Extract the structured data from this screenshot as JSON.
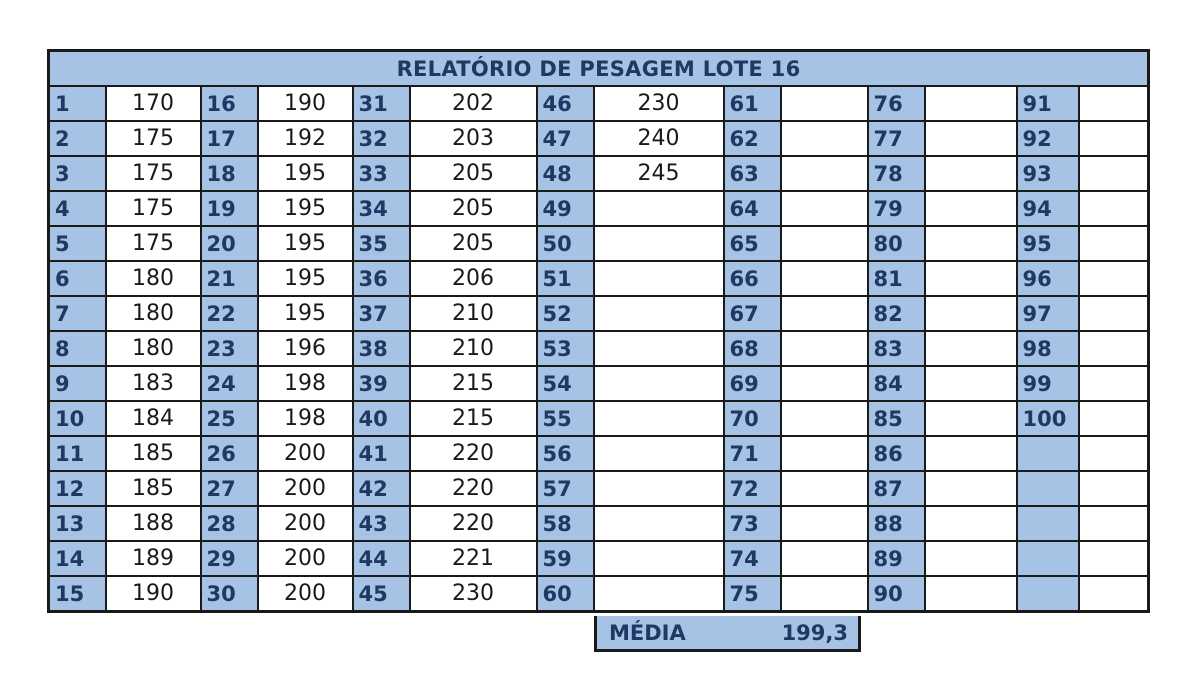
{
  "title": "RELATÓRIO DE PESAGEM LOTE 16",
  "columns": [
    {
      "nums": [
        "1",
        "2",
        "3",
        "4",
        "5",
        "6",
        "7",
        "8",
        "9",
        "10",
        "11",
        "12",
        "13",
        "14",
        "15"
      ],
      "vals": [
        "170",
        "175",
        "175",
        "175",
        "175",
        "180",
        "180",
        "180",
        "183",
        "184",
        "185",
        "185",
        "188",
        "189",
        "190"
      ]
    },
    {
      "nums": [
        "16",
        "17",
        "18",
        "19",
        "20",
        "21",
        "22",
        "23",
        "24",
        "25",
        "26",
        "27",
        "28",
        "29",
        "30"
      ],
      "vals": [
        "190",
        "192",
        "195",
        "195",
        "195",
        "195",
        "195",
        "196",
        "198",
        "198",
        "200",
        "200",
        "200",
        "200",
        "200"
      ]
    },
    {
      "nums": [
        "31",
        "32",
        "33",
        "34",
        "35",
        "36",
        "37",
        "38",
        "39",
        "40",
        "41",
        "42",
        "43",
        "44",
        "45"
      ],
      "vals": [
        "202",
        "203",
        "205",
        "205",
        "205",
        "206",
        "210",
        "210",
        "215",
        "215",
        "220",
        "220",
        "220",
        "221",
        "230"
      ]
    },
    {
      "nums": [
        "46",
        "47",
        "48",
        "49",
        "50",
        "51",
        "52",
        "53",
        "54",
        "55",
        "56",
        "57",
        "58",
        "59",
        "60"
      ],
      "vals": [
        "230",
        "240",
        "245",
        "",
        "",
        "",
        "",
        "",
        "",
        "",
        "",
        "",
        "",
        "",
        ""
      ]
    },
    {
      "nums": [
        "61",
        "62",
        "63",
        "64",
        "65",
        "66",
        "67",
        "68",
        "69",
        "70",
        "71",
        "72",
        "73",
        "74",
        "75"
      ],
      "vals": [
        "",
        "",
        "",
        "",
        "",
        "",
        "",
        "",
        "",
        "",
        "",
        "",
        "",
        "",
        ""
      ]
    },
    {
      "nums": [
        "76",
        "77",
        "78",
        "79",
        "80",
        "81",
        "82",
        "83",
        "84",
        "85",
        "86",
        "87",
        "88",
        "89",
        "90"
      ],
      "vals": [
        "",
        "",
        "",
        "",
        "",
        "",
        "",
        "",
        "",
        "",
        "",
        "",
        "",
        "",
        ""
      ]
    },
    {
      "nums": [
        "91",
        "92",
        "93",
        "94",
        "95",
        "96",
        "97",
        "98",
        "99",
        "100",
        "",
        "",
        "",
        "",
        ""
      ],
      "vals": [
        "",
        "",
        "",
        "",
        "",
        "",
        "",
        "",
        "",
        "",
        "",
        "",
        "",
        "",
        ""
      ]
    }
  ],
  "summary": {
    "label": "MÉDIA",
    "value": "199,3"
  },
  "colors": {
    "header_fill": "#a6c2e4",
    "number_text": "#1f3864",
    "border": "#1a1a1a"
  }
}
